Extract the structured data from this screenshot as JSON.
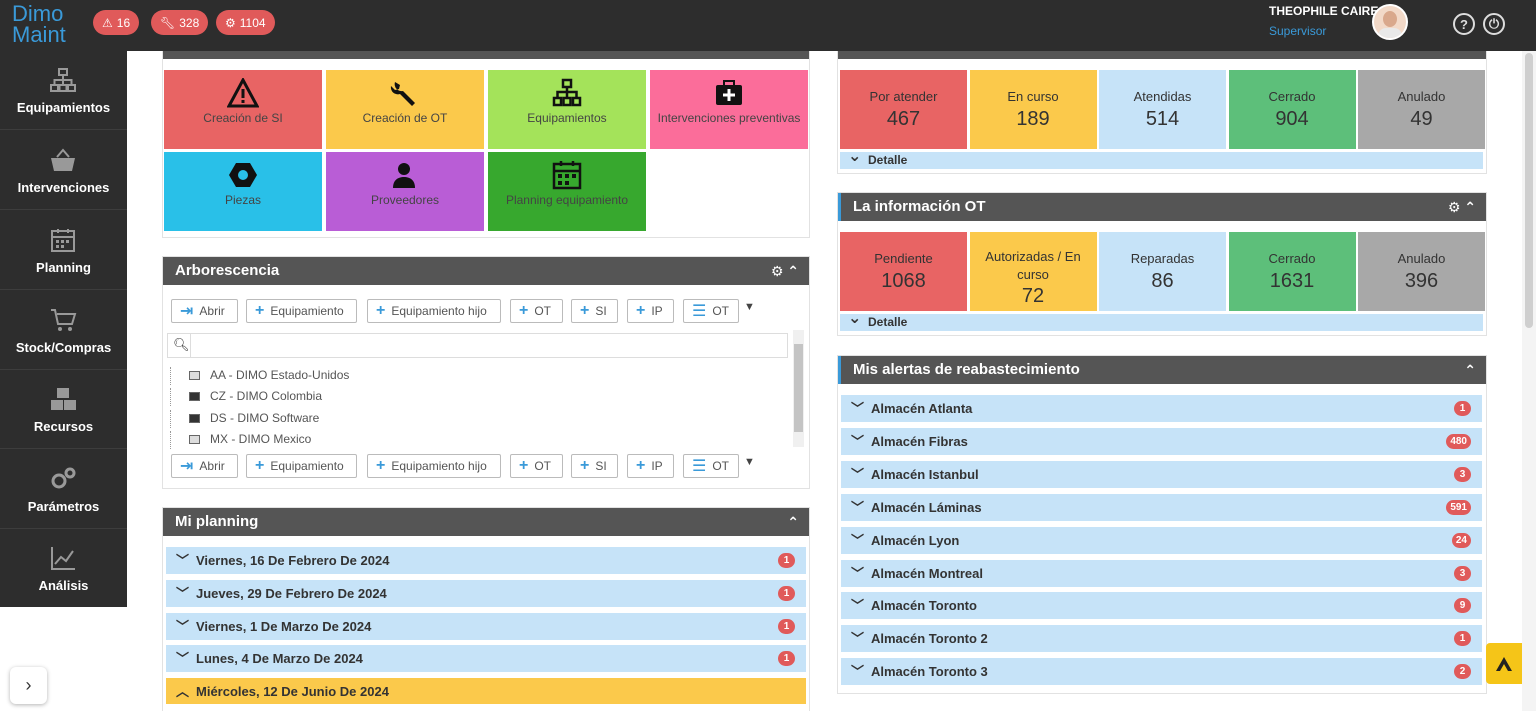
{
  "app": {
    "logo_line1": "Dimo",
    "logo_line2": "Maint"
  },
  "top_badges": [
    {
      "icon": "warning-icon",
      "value": "16"
    },
    {
      "icon": "wrench-icon",
      "value": "328"
    },
    {
      "icon": "gear-icon",
      "value": "1104"
    }
  ],
  "user": {
    "name": "THEOPHILE CAIRE",
    "role": "Supervisor"
  },
  "sidebar": [
    {
      "label": "Equipamientos",
      "icon": "hierarchy-icon"
    },
    {
      "label": "Intervenciones",
      "icon": "basket-icon"
    },
    {
      "label": "Planning",
      "icon": "calendar-icon"
    },
    {
      "label": "Stock/Compras",
      "icon": "cart-icon"
    },
    {
      "label": "Recursos",
      "icon": "boxes-icon"
    },
    {
      "label": "Parámetros",
      "icon": "gears-icon"
    },
    {
      "label": "Análisis",
      "icon": "chart-icon"
    }
  ],
  "tiles": [
    {
      "label": "Creación de SI",
      "color": "#e86464",
      "icon": "warning-icon"
    },
    {
      "label": "Creación de OT",
      "color": "#fbc94b",
      "icon": "wrench-icon"
    },
    {
      "label": "Equipamientos",
      "color": "#a4e35a",
      "icon": "hierarchy-icon"
    },
    {
      "label": "Intervenciones preventivas",
      "color": "#fb6d9a",
      "icon": "medkit-icon"
    },
    {
      "label": "Piezas",
      "color": "#29c0e8",
      "icon": "hexagon-icon"
    },
    {
      "label": "Proveedores",
      "color": "#b95dd6",
      "icon": "supplier-icon"
    },
    {
      "label": "Planning equipamiento",
      "color": "#37a82e",
      "icon": "calendar-icon"
    }
  ],
  "si_stats": [
    {
      "label": "Por atender",
      "value": "467",
      "color": "#e86464"
    },
    {
      "label": "En curso",
      "value": "189",
      "color": "#fbc94b"
    },
    {
      "label": "Atendidas",
      "value": "514",
      "color": "#c6e3f8"
    },
    {
      "label": "Cerrado",
      "value": "904",
      "color": "#5dbf7a"
    },
    {
      "label": "Anulado",
      "value": "49",
      "color": "#a8a8a8"
    }
  ],
  "ot_panel": {
    "title": "La información OT"
  },
  "ot_stats": [
    {
      "label": "Pendiente",
      "value": "1068",
      "color": "#e86464"
    },
    {
      "label": "Autorizadas / En curso",
      "value": "72",
      "color": "#fbc94b"
    },
    {
      "label": "Reparadas",
      "value": "86",
      "color": "#c6e3f8"
    },
    {
      "label": "Cerrado",
      "value": "1631",
      "color": "#5dbf7a"
    },
    {
      "label": "Anulado",
      "value": "396",
      "color": "#a8a8a8"
    }
  ],
  "detail_label": "Detalle",
  "tree_panel": {
    "title": "Arborescencia",
    "buttons": [
      "Abrir",
      "Equipamiento",
      "Equipamiento hijo",
      "OT",
      "SI",
      "IP",
      "OT"
    ],
    "items": [
      "AA - DIMO Estado-Unidos",
      "CZ - DIMO Colombia",
      "DS - DIMO Software",
      "MX - DIMO Mexico"
    ]
  },
  "planning_panel": {
    "title": "Mi planning",
    "rows": [
      {
        "label": "Viernes, 16 De Febrero De 2024",
        "count": "1"
      },
      {
        "label": "Jueves, 29 De Febrero De 2024",
        "count": "1"
      },
      {
        "label": "Viernes, 1 De Marzo De 2024",
        "count": "1"
      },
      {
        "label": "Lunes, 4 De Marzo De 2024",
        "count": "1"
      },
      {
        "label": "Miércoles, 12 De Junio De 2024",
        "count": ""
      }
    ]
  },
  "alerts_panel": {
    "title": "Mis alertas de reabastecimiento",
    "rows": [
      {
        "label": "Almacén Atlanta",
        "count": "1"
      },
      {
        "label": "Almacén Fibras",
        "count": "480"
      },
      {
        "label": "Almacén Istanbul",
        "count": "3"
      },
      {
        "label": "Almacén Láminas",
        "count": "591"
      },
      {
        "label": "Almacén Lyon",
        "count": "24"
      },
      {
        "label": "Almacén Montreal",
        "count": "3"
      },
      {
        "label": "Almacén Toronto",
        "count": "9"
      },
      {
        "label": "Almacén Toronto 2",
        "count": "1"
      },
      {
        "label": "Almacén Toronto 3",
        "count": "2"
      }
    ]
  }
}
